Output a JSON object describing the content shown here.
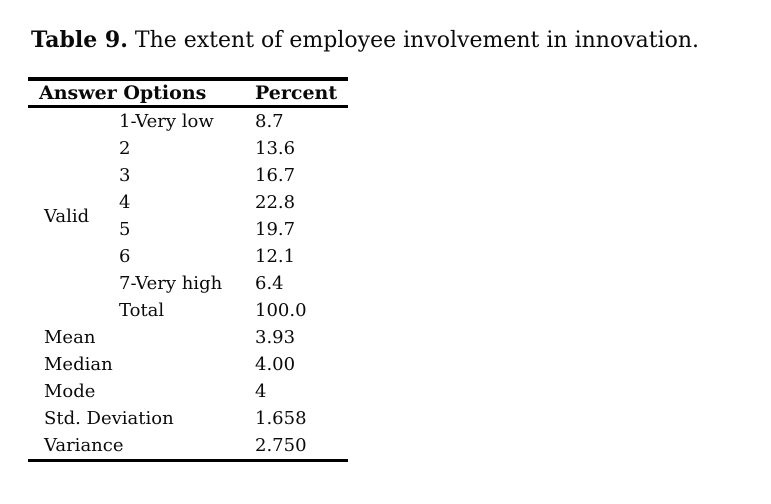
{
  "caption": {
    "label": "Table 9.",
    "text": "The extent of employee involvement in innovation."
  },
  "table": {
    "headers": [
      "Answer Options",
      "Percent"
    ],
    "group_label": "Valid",
    "valid_rows": [
      {
        "option": "1-Very low",
        "percent": "8.7"
      },
      {
        "option": "2",
        "percent": "13.6"
      },
      {
        "option": "3",
        "percent": "16.7"
      },
      {
        "option": "4",
        "percent": "22.8"
      },
      {
        "option": "5",
        "percent": "19.7"
      },
      {
        "option": "6",
        "percent": "12.1"
      },
      {
        "option": "7-Very high",
        "percent": "6.4"
      },
      {
        "option": "Total",
        "percent": "100.0"
      }
    ],
    "stats_rows": [
      {
        "label": "Mean",
        "value": "3.93"
      },
      {
        "label": "Median",
        "value": "4.00"
      },
      {
        "label": "Mode",
        "value": "4"
      },
      {
        "label": "Std. Deviation",
        "value": "1.658"
      },
      {
        "label": "Variance",
        "value": "2.750"
      }
    ]
  },
  "colors": {
    "text": "#0a0a0a",
    "rule": "#000000",
    "background": "#ffffff"
  }
}
